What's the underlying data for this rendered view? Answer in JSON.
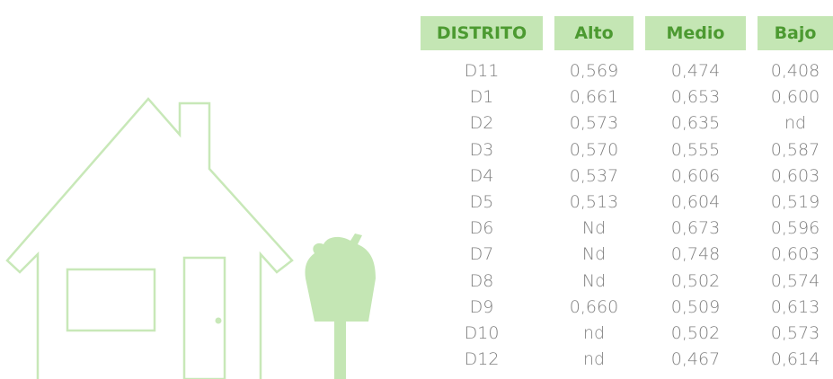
{
  "table": {
    "columns": [
      "DISTRITO",
      "Alto",
      "Medio",
      "Bajo"
    ],
    "rows": [
      [
        "D11",
        "0,569",
        "0,474",
        "0,408"
      ],
      [
        "D1",
        "0,661",
        "0,653",
        "0,600"
      ],
      [
        "D2",
        "0,573",
        "0,635",
        "nd"
      ],
      [
        "D3",
        "0,570",
        "0,555",
        "0,587"
      ],
      [
        "D4",
        "0,537",
        "0,606",
        "0,603"
      ],
      [
        "D5",
        "0,513",
        "0,604",
        "0,519"
      ],
      [
        "D6",
        "Nd",
        "0,673",
        "0,596"
      ],
      [
        "D7",
        "Nd",
        "0,748",
        "0,603"
      ],
      [
        "D8",
        "Nd",
        "0,502",
        "0,574"
      ],
      [
        "D9",
        "0,660",
        "0,509",
        "0,613"
      ],
      [
        "D10",
        "nd",
        "0,502",
        "0,573"
      ],
      [
        "D12",
        "nd",
        "0,467",
        "0,614"
      ]
    ]
  }
}
